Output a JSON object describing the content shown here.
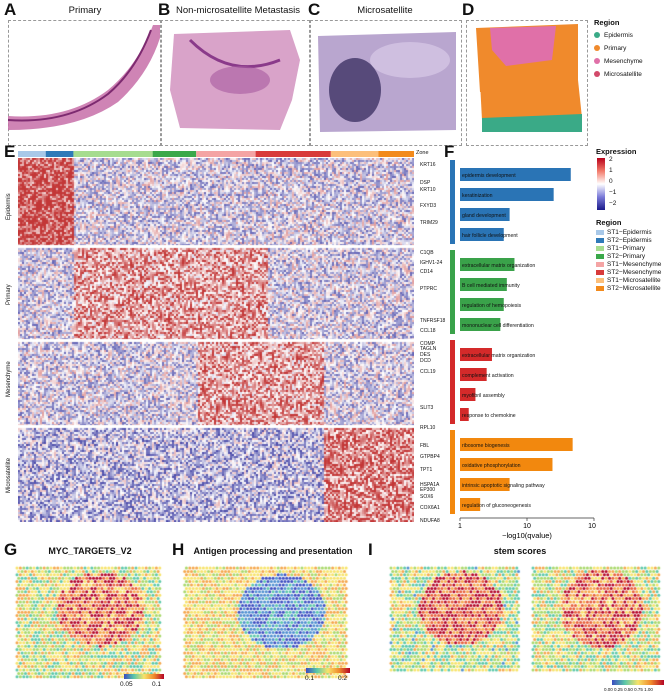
{
  "panels": {
    "A": {
      "label": "A",
      "title": "Primary"
    },
    "B": {
      "label": "B",
      "title": "Non-microsatellite Metastasis"
    },
    "C": {
      "label": "C",
      "title": "Microsatellite"
    },
    "D": {
      "label": "D"
    },
    "E": {
      "label": "E"
    },
    "F": {
      "label": "F"
    },
    "G": {
      "label": "G",
      "title": "MYC_TARGETS_V2"
    },
    "H": {
      "label": "H",
      "title": "Antigen processing and presentation"
    },
    "I": {
      "label": "I",
      "title": "stem scores"
    }
  },
  "region_legend": {
    "title": "Region",
    "items": [
      {
        "name": "Epidermis",
        "color": "#3aaa87"
      },
      {
        "name": "Primary",
        "color": "#f08a2c"
      },
      {
        "name": "Mesenchyme",
        "color": "#e070a8"
      },
      {
        "name": "Microsatellite",
        "color": "#d24a6a"
      }
    ]
  },
  "heatmap": {
    "zone_label": "Zone",
    "row_groups": [
      "Epidermis",
      "Primary",
      "Mesenchyme",
      "Microsatellite"
    ],
    "genes": [
      "KRT16",
      "DSP",
      "KRT10",
      "FXYD3",
      "TRIM29",
      "C1QB",
      "IGHV1-24",
      "CD14",
      "PTPRC",
      "TNFRSF18",
      "CCL18",
      "COMP",
      "TAGLN",
      "DES",
      "DCD",
      "CCL19",
      "SLIT3",
      "RPL10",
      "FBL",
      "GTPBP4",
      "TPT1",
      "HSPA1A",
      "EP300",
      "SOX6",
      "COX6A1",
      "NDUFA8"
    ],
    "zone_colors": [
      "#a8c8e8",
      "#2f7ab8",
      "#a6dc8f",
      "#3aa84a",
      "#f4a4a4",
      "#d83a3a",
      "#fcbf7a",
      "#f28a1c"
    ]
  },
  "expression_legend": {
    "title": "Expression",
    "ticks": [
      "2",
      "1",
      "0",
      "−1",
      "−2"
    ]
  },
  "region_legend2": {
    "title": "Region",
    "items": [
      {
        "name": "ST1−Epidermis",
        "color": "#a8c8e8"
      },
      {
        "name": "ST2−Epidermis",
        "color": "#2f7ab8"
      },
      {
        "name": "ST1−Primary",
        "color": "#a6dc8f"
      },
      {
        "name": "ST2−Primary",
        "color": "#3aa84a"
      },
      {
        "name": "ST1−Mesenchyme",
        "color": "#f4a4a4"
      },
      {
        "name": "ST2−Mesenchyme",
        "color": "#d83a3a"
      },
      {
        "name": "ST1−Microsatellite",
        "color": "#fcbf7a"
      },
      {
        "name": "ST2−Microsatellite",
        "color": "#f28a1c"
      }
    ]
  },
  "chart_data": [
    {
      "type": "bar",
      "orientation": "horizontal",
      "title": "",
      "xlabel": "−log10(qvalue)",
      "ylabel": "",
      "xscale": "log",
      "xlim": [
        1,
        100
      ],
      "xticks": [
        "1",
        "10",
        "100"
      ],
      "groups": [
        {
          "name": "Epidermis",
          "color": "#2a74b5",
          "terms": [
            "epidermis development",
            "keratinization",
            "gland development",
            "hair follicle development"
          ],
          "values": [
            45,
            25,
            5.5,
            4.5
          ]
        },
        {
          "name": "Primary",
          "color": "#3aa24a",
          "terms": [
            "extracellular matrix organization",
            "B cell mediated immunity",
            "regulation of hemopoiesis",
            "mononuclear cell differentiation"
          ],
          "values": [
            6.5,
            5,
            4.5,
            4
          ]
        },
        {
          "name": "Mesenchyme",
          "color": "#d42a2a",
          "terms": [
            "extracellular matrix organization",
            "complement activation",
            "myofibril assembly",
            "response to chemokine"
          ],
          "values": [
            3,
            2.5,
            1.7,
            1.35
          ]
        },
        {
          "name": "Microsatellite",
          "color": "#f2880e",
          "terms": [
            "ribosome biogenesis",
            "oxidative phosphorylation",
            "intrinsic apoptotic signaling pathway",
            "regulation of gluconeogenesis"
          ],
          "values": [
            48,
            24,
            5.5,
            2
          ]
        }
      ]
    }
  ],
  "scale_G": {
    "ticks": [
      "0.05",
      "0.1"
    ]
  },
  "scale_H": {
    "ticks": [
      "0.1",
      "0.2"
    ]
  },
  "scale_I": {
    "ticks": [
      "0.00",
      "0.25",
      "0.50",
      "0.75",
      "1.00"
    ]
  }
}
